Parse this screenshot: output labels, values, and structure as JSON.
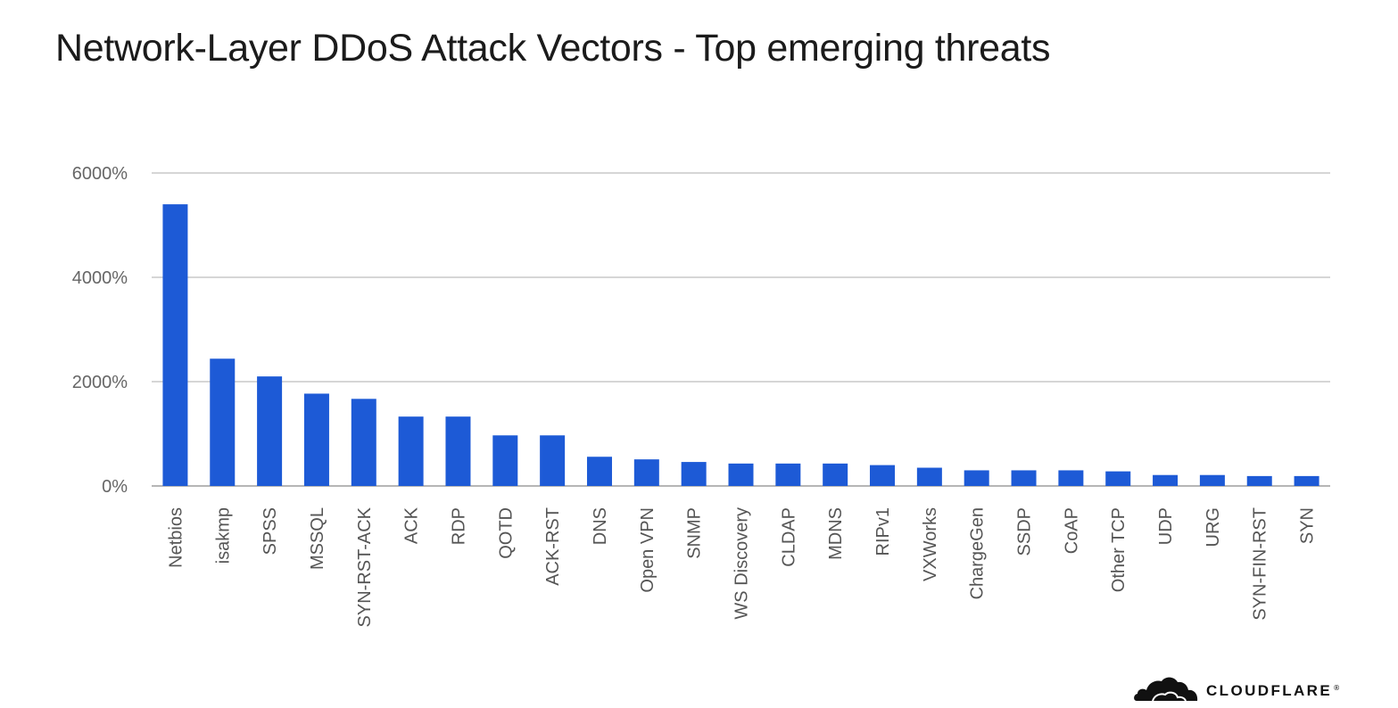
{
  "title": "Network-Layer DDoS Attack Vectors - Top emerging threats",
  "logo": {
    "icon": "cloud-icon",
    "wordmark": "CLOUDFLARE",
    "trademark": "®"
  },
  "colors": {
    "bar": "#1D5AD6",
    "text": "#1b1b1b",
    "grid": "#c8c8c8"
  },
  "chart_data": {
    "type": "bar",
    "categories": [
      "Netbios",
      "isakmp",
      "SPSS",
      "MSSQL",
      "SYN-RST-ACK",
      "ACK",
      "RDP",
      "QOTD",
      "ACK-RST",
      "DNS",
      "Open VPN",
      "SNMP",
      "WS Discovery",
      "CLDAP",
      "MDNS",
      "RIPv1",
      "VXWorks",
      "ChargeGen",
      "SSDP",
      "CoAP",
      "Other TCP",
      "UDP",
      "URG",
      "SYN-FIN-RST",
      "SYN"
    ],
    "values": [
      5400,
      2440,
      2100,
      1770,
      1670,
      1330,
      1330,
      970,
      970,
      560,
      510,
      460,
      430,
      430,
      430,
      400,
      350,
      300,
      300,
      300,
      280,
      210,
      210,
      190,
      190
    ],
    "yticks": [
      "0%",
      "2000%",
      "4000%",
      "6000%"
    ],
    "ylim": [
      0,
      6000
    ],
    "xlabel": "",
    "ylabel": "",
    "grid": true,
    "legend": "none"
  }
}
